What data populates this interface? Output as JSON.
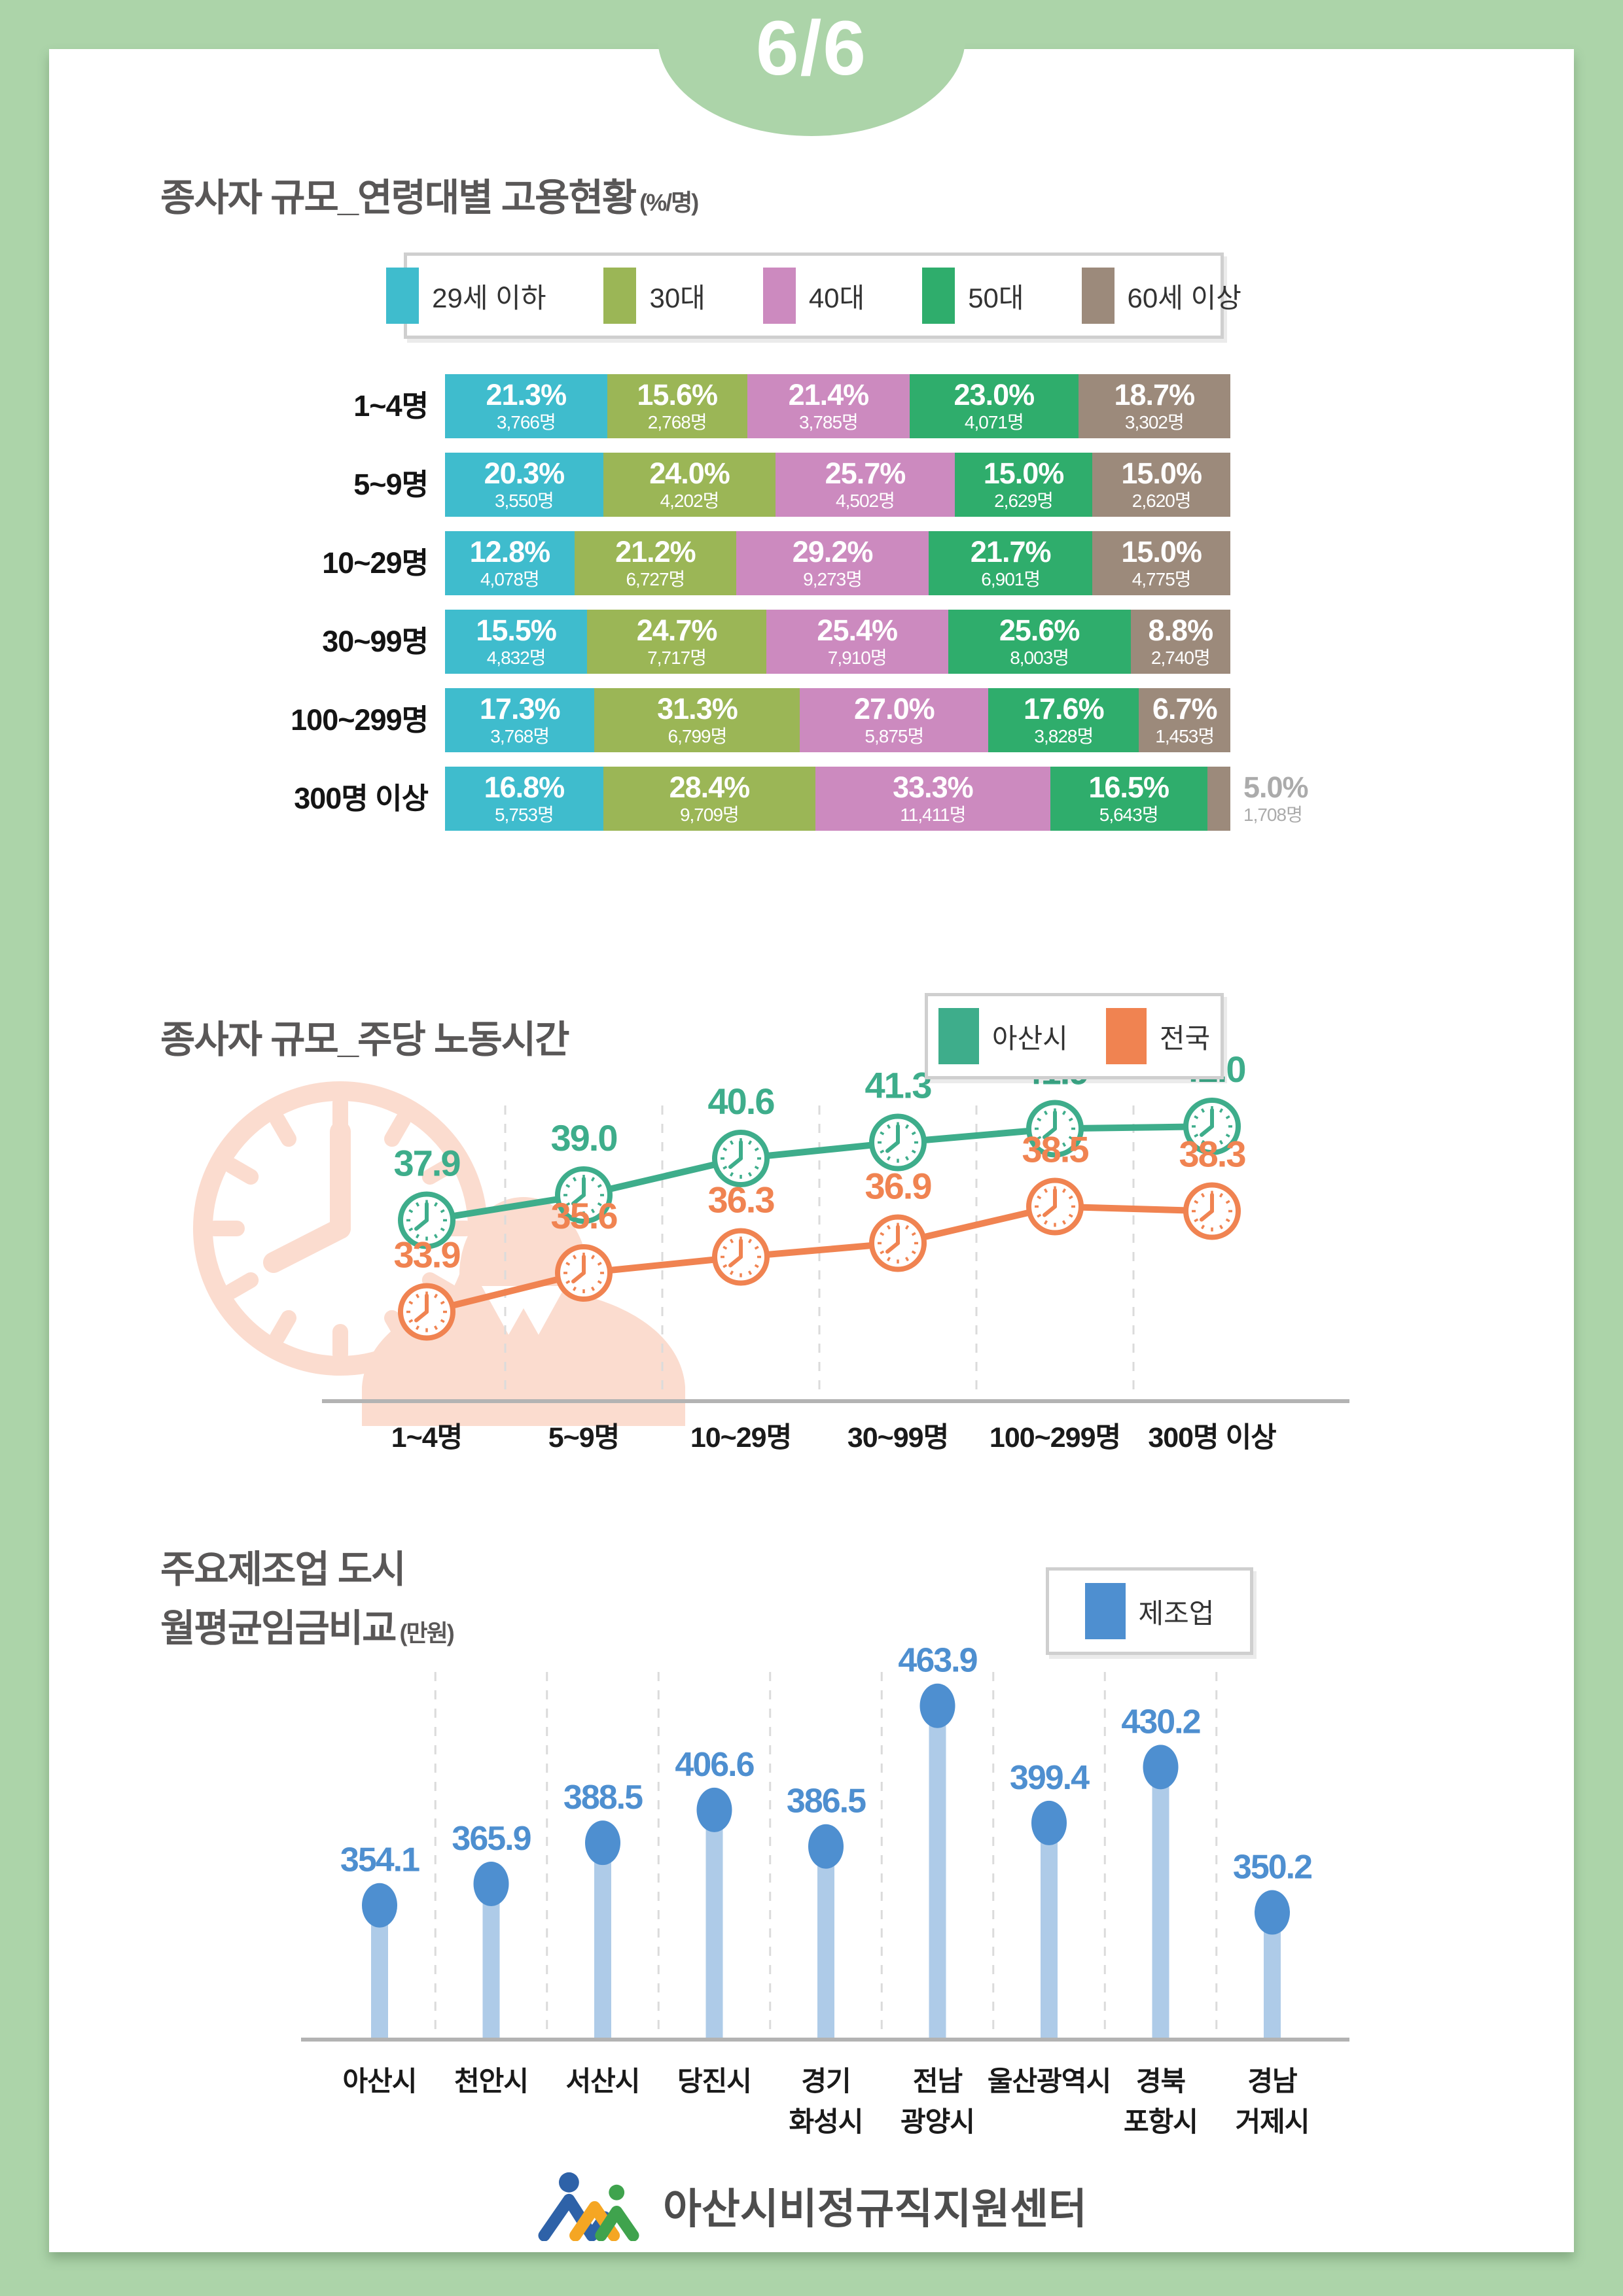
{
  "page": {
    "number_label": "6/6",
    "background_color": "#ACD4A9"
  },
  "footer": {
    "logo_text": "아산시비정규직지원센터"
  },
  "chart_data": [
    {
      "type": "bar",
      "subtype": "horizontal-stacked-percent",
      "title": "종사자 규모_연령대별 고용현황",
      "unit_note": "(%/명)",
      "legend": [
        {
          "label": "29세 이하",
          "color": "#3FBCCD"
        },
        {
          "label": "30대",
          "color": "#9BB656"
        },
        {
          "label": "40대",
          "color": "#CC8ABF"
        },
        {
          "label": "50대",
          "color": "#2FAD6C"
        },
        {
          "label": "60세 이상",
          "color": "#9C8A7B"
        }
      ],
      "rows": [
        {
          "label": "1~4명",
          "segments": [
            {
              "pct": 21.3,
              "pct_label": "21.3%",
              "count": "3,766명"
            },
            {
              "pct": 15.6,
              "pct_label": "15.6%",
              "count": "2,768명"
            },
            {
              "pct": 21.4,
              "pct_label": "21.4%",
              "count": "3,785명"
            },
            {
              "pct": 23.0,
              "pct_label": "23.0%",
              "count": "4,071명"
            },
            {
              "pct": 18.7,
              "pct_label": "18.7%",
              "count": "3,302명"
            }
          ]
        },
        {
          "label": "5~9명",
          "segments": [
            {
              "pct": 20.3,
              "pct_label": "20.3%",
              "count": "3,550명"
            },
            {
              "pct": 24.0,
              "pct_label": "24.0%",
              "count": "4,202명"
            },
            {
              "pct": 25.7,
              "pct_label": "25.7%",
              "count": "4,502명"
            },
            {
              "pct": 15.0,
              "pct_label": "15.0%",
              "count": "2,629명"
            },
            {
              "pct": 15.0,
              "pct_label": "15.0%",
              "count": "2,620명"
            }
          ]
        },
        {
          "label": "10~29명",
          "segments": [
            {
              "pct": 12.8,
              "pct_label": "12.8%",
              "count": "4,078명"
            },
            {
              "pct": 21.2,
              "pct_label": "21.2%",
              "count": "6,727명"
            },
            {
              "pct": 29.2,
              "pct_label": "29.2%",
              "count": "9,273명"
            },
            {
              "pct": 21.7,
              "pct_label": "21.7%",
              "count": "6,901명"
            },
            {
              "pct": 15.0,
              "pct_label": "15.0%",
              "count": "4,775명"
            }
          ]
        },
        {
          "label": "30~99명",
          "segments": [
            {
              "pct": 15.5,
              "pct_label": "15.5%",
              "count": "4,832명"
            },
            {
              "pct": 24.7,
              "pct_label": "24.7%",
              "count": "7,717명"
            },
            {
              "pct": 25.4,
              "pct_label": "25.4%",
              "count": "7,910명"
            },
            {
              "pct": 25.6,
              "pct_label": "25.6%",
              "count": "8,003명"
            },
            {
              "pct": 8.8,
              "pct_label": "8.8%",
              "count": "2,740명"
            }
          ]
        },
        {
          "label": "100~299명",
          "segments": [
            {
              "pct": 17.3,
              "pct_label": "17.3%",
              "count": "3,768명"
            },
            {
              "pct": 31.3,
              "pct_label": "31.3%",
              "count": "6,799명"
            },
            {
              "pct": 27.0,
              "pct_label": "27.0%",
              "count": "5,875명"
            },
            {
              "pct": 17.6,
              "pct_label": "17.6%",
              "count": "3,828명"
            },
            {
              "pct": 6.7,
              "pct_label": "6.7%",
              "count": "1,453명"
            }
          ]
        },
        {
          "label": "300명 이상",
          "segments": [
            {
              "pct": 16.8,
              "pct_label": "16.8%",
              "count": "5,753명"
            },
            {
              "pct": 28.4,
              "pct_label": "28.4%",
              "count": "9,709명"
            },
            {
              "pct": 33.3,
              "pct_label": "33.3%",
              "count": "11,411명"
            },
            {
              "pct": 16.5,
              "pct_label": "16.5%",
              "count": "5,643명"
            },
            {
              "pct": 5.0,
              "pct_label": "5.0%",
              "count": "1,708명",
              "label_outside": true
            }
          ]
        }
      ]
    },
    {
      "type": "line",
      "title": "종사자 규모_주당 노동시간",
      "categories": [
        "1~4명",
        "5~9명",
        "10~29명",
        "30~99명",
        "100~299명",
        "300명 이상"
      ],
      "series": [
        {
          "name": "아산시",
          "color": "#3EAD8B",
          "values": [
            37.9,
            39.0,
            40.6,
            41.3,
            41.9,
            42.0
          ]
        },
        {
          "name": "전국",
          "color": "#F08351",
          "values": [
            33.9,
            35.6,
            36.3,
            36.9,
            38.5,
            38.3
          ]
        }
      ],
      "marker": "clock",
      "ylim": [
        30,
        45
      ],
      "grid": "vertical-dashed",
      "legend_position": "top-right"
    },
    {
      "type": "bar",
      "subtype": "lollipop",
      "title_line1": "주요제조업 도시",
      "title_line2": "월평균임금비교",
      "unit_note": "(만원)",
      "legend": [
        {
          "label": "제조업",
          "color": "#4E8FD0"
        }
      ],
      "categories": [
        [
          "아산시"
        ],
        [
          "천안시"
        ],
        [
          "서산시"
        ],
        [
          "당진시"
        ],
        [
          "경기",
          "화성시"
        ],
        [
          "전남",
          "광양시"
        ],
        [
          "울산광역시"
        ],
        [
          "경북",
          "포항시"
        ],
        [
          "경남",
          "거제시"
        ]
      ],
      "values": [
        354.1,
        365.9,
        388.5,
        406.6,
        386.5,
        463.9,
        399.4,
        430.2,
        350.2
      ],
      "stem_color": "#AECBE8",
      "dot_color": "#4E8FD0",
      "ylim": [
        300,
        480
      ],
      "grid": "vertical-dashed",
      "legend_position": "top-right"
    }
  ]
}
